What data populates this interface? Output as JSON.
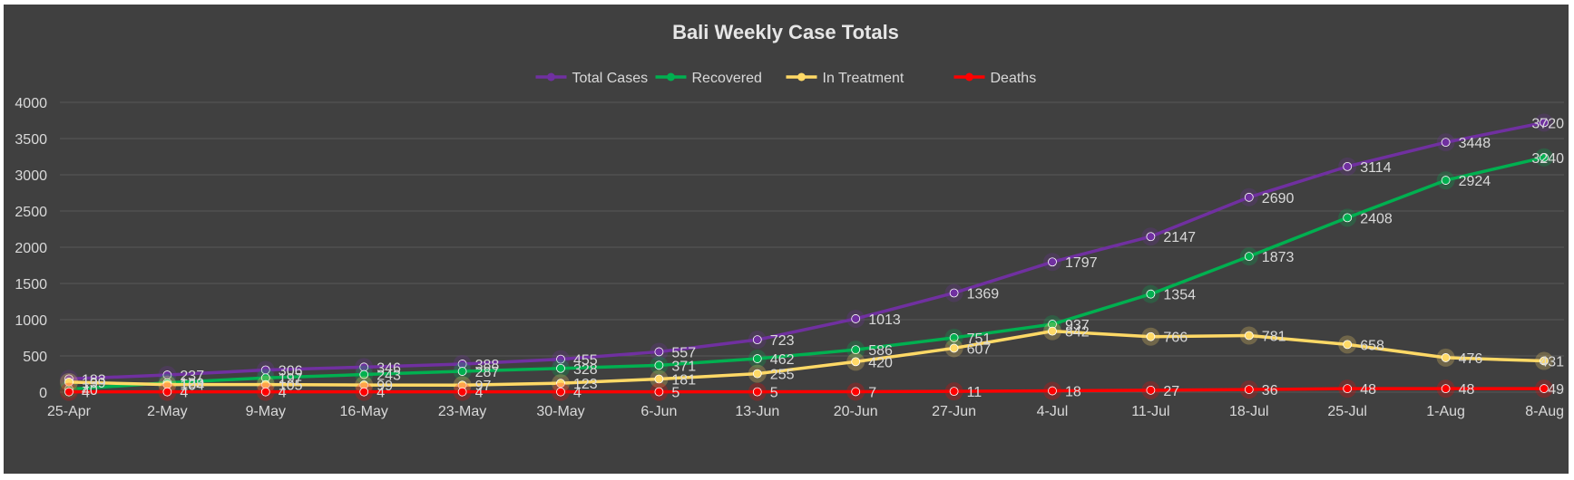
{
  "chart_data": {
    "type": "line",
    "title": "Bali Weekly Case Totals",
    "xlabel": "",
    "ylabel": "",
    "categories": [
      "25-Apr",
      "2-May",
      "9-May",
      "16-May",
      "23-May",
      "30-May",
      "6-Jun",
      "13-Jun",
      "20-Jun",
      "27-Jun",
      "4-Jul",
      "11-Jul",
      "18-Jul",
      "25-Jul",
      "1-Aug",
      "8-Aug"
    ],
    "ylim": [
      0,
      4000
    ],
    "yticks": [
      0,
      500,
      1000,
      1500,
      2000,
      2500,
      3000,
      3500,
      4000
    ],
    "grid": true,
    "legend": "top",
    "series": [
      {
        "name": "Total Cases",
        "color": "#7030a0",
        "values": [
          183,
          237,
          306,
          346,
          388,
          455,
          557,
          723,
          1013,
          1369,
          1797,
          2147,
          2690,
          3114,
          3448,
          3720
        ]
      },
      {
        "name": "Recovered",
        "color": "#00b050",
        "values": [
          40,
          129,
          197,
          243,
          287,
          328,
          371,
          462,
          586,
          751,
          937,
          1354,
          1873,
          2408,
          2924,
          3240
        ]
      },
      {
        "name": "In Treatment",
        "color": "#ffd966",
        "values": [
          139,
          104,
          105,
          99,
          97,
          123,
          181,
          255,
          420,
          607,
          842,
          766,
          781,
          658,
          476,
          431
        ]
      },
      {
        "name": "Deaths",
        "color": "#ff0000",
        "values": [
          4,
          4,
          4,
          4,
          4,
          4,
          5,
          5,
          7,
          11,
          18,
          27,
          36,
          48,
          48,
          49
        ]
      }
    ],
    "colors": {
      "background": "#404040",
      "gridline": "#595959",
      "text": "#d9d9d9",
      "title": "#e6e6e6"
    }
  }
}
